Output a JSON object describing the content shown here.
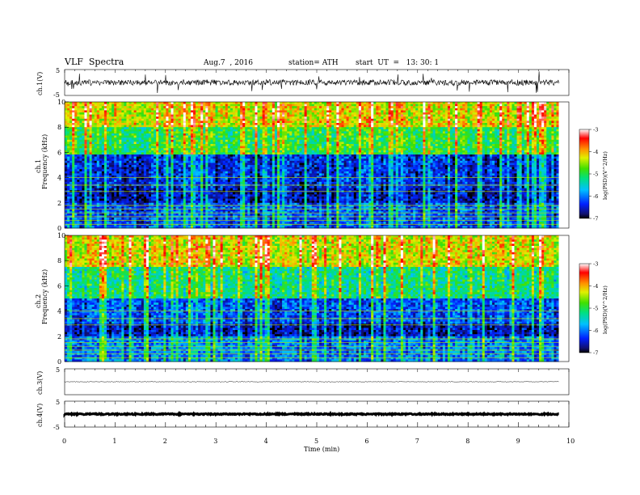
{
  "header": {
    "title": "VLF  Spectra",
    "date": "Aug.7  , 2016",
    "station": "station= ATH",
    "start": "start  UT  =   13: 30: 1"
  },
  "panels": {
    "ch1_wave_label": "ch.1(V)",
    "ch1_spec_label": "ch.1",
    "ch2_spec_label": "ch.2",
    "freq_label": "Frequency  (kHz)",
    "ch3_wave_label": "ch.3(V)",
    "ch4_wave_label": "ch.4(V)",
    "wave_ticks": [
      "5",
      "-5"
    ],
    "freq_ticks": [
      "0",
      "2",
      "4",
      "6",
      "8",
      "10"
    ]
  },
  "x_axis": {
    "label": "Time  (min)",
    "ticks": [
      "0",
      "1",
      "2",
      "3",
      "4",
      "5",
      "6",
      "7",
      "8",
      "9",
      "10"
    ]
  },
  "colorbar": {
    "label": "log(PSD)(V^2/Hz)",
    "ticks": [
      "-3",
      "-4",
      "-5",
      "-6",
      "-7"
    ]
  },
  "chart_data": {
    "type": "heatmap",
    "title": "VLF  Spectra",
    "xlabel": "Time  (min)",
    "xlim": [
      0,
      10
    ],
    "data_end_min": 9.8,
    "panels": [
      {
        "name": "ch.1(V)",
        "kind": "waveform",
        "ylim": [
          -5,
          5
        ],
        "level": 0
      },
      {
        "name": "ch.1",
        "kind": "spectrogram",
        "ylabel": "Frequency  (kHz)",
        "ylim": [
          0,
          10
        ],
        "zlim": [
          -7,
          -3
        ],
        "zlabel": "log(PSD)(V^2/Hz)",
        "bands": [
          {
            "fmin": 0,
            "fmax": 2,
            "mean": -6.2
          },
          {
            "fmin": 2,
            "fmax": 3.2,
            "mean": -6.6
          },
          {
            "fmin": 3.2,
            "fmax": 5.8,
            "mean": -6.4
          },
          {
            "fmin": 5.8,
            "fmax": 8,
            "mean": -5.0
          },
          {
            "fmin": 8,
            "fmax": 10,
            "mean": -4.3
          }
        ]
      },
      {
        "name": "ch.2",
        "kind": "spectrogram",
        "ylabel": "Frequency  (kHz)",
        "ylim": [
          0,
          10
        ],
        "zlim": [
          -7,
          -3
        ],
        "zlabel": "log(PSD)(V^2/Hz)",
        "bands": [
          {
            "fmin": 0,
            "fmax": 2,
            "mean": -6.0
          },
          {
            "fmin": 2,
            "fmax": 3,
            "mean": -6.6
          },
          {
            "fmin": 3,
            "fmax": 5,
            "mean": -6.2
          },
          {
            "fmin": 5,
            "fmax": 7.5,
            "mean": -5.2
          },
          {
            "fmin": 7.5,
            "fmax": 10,
            "mean": -4.3
          }
        ]
      },
      {
        "name": "ch.3(V)",
        "kind": "waveform",
        "ylim": [
          -5,
          5
        ],
        "level": 0
      },
      {
        "name": "ch.4(V)",
        "kind": "waveform",
        "ylim": [
          -5,
          5
        ],
        "level": 0
      }
    ]
  }
}
